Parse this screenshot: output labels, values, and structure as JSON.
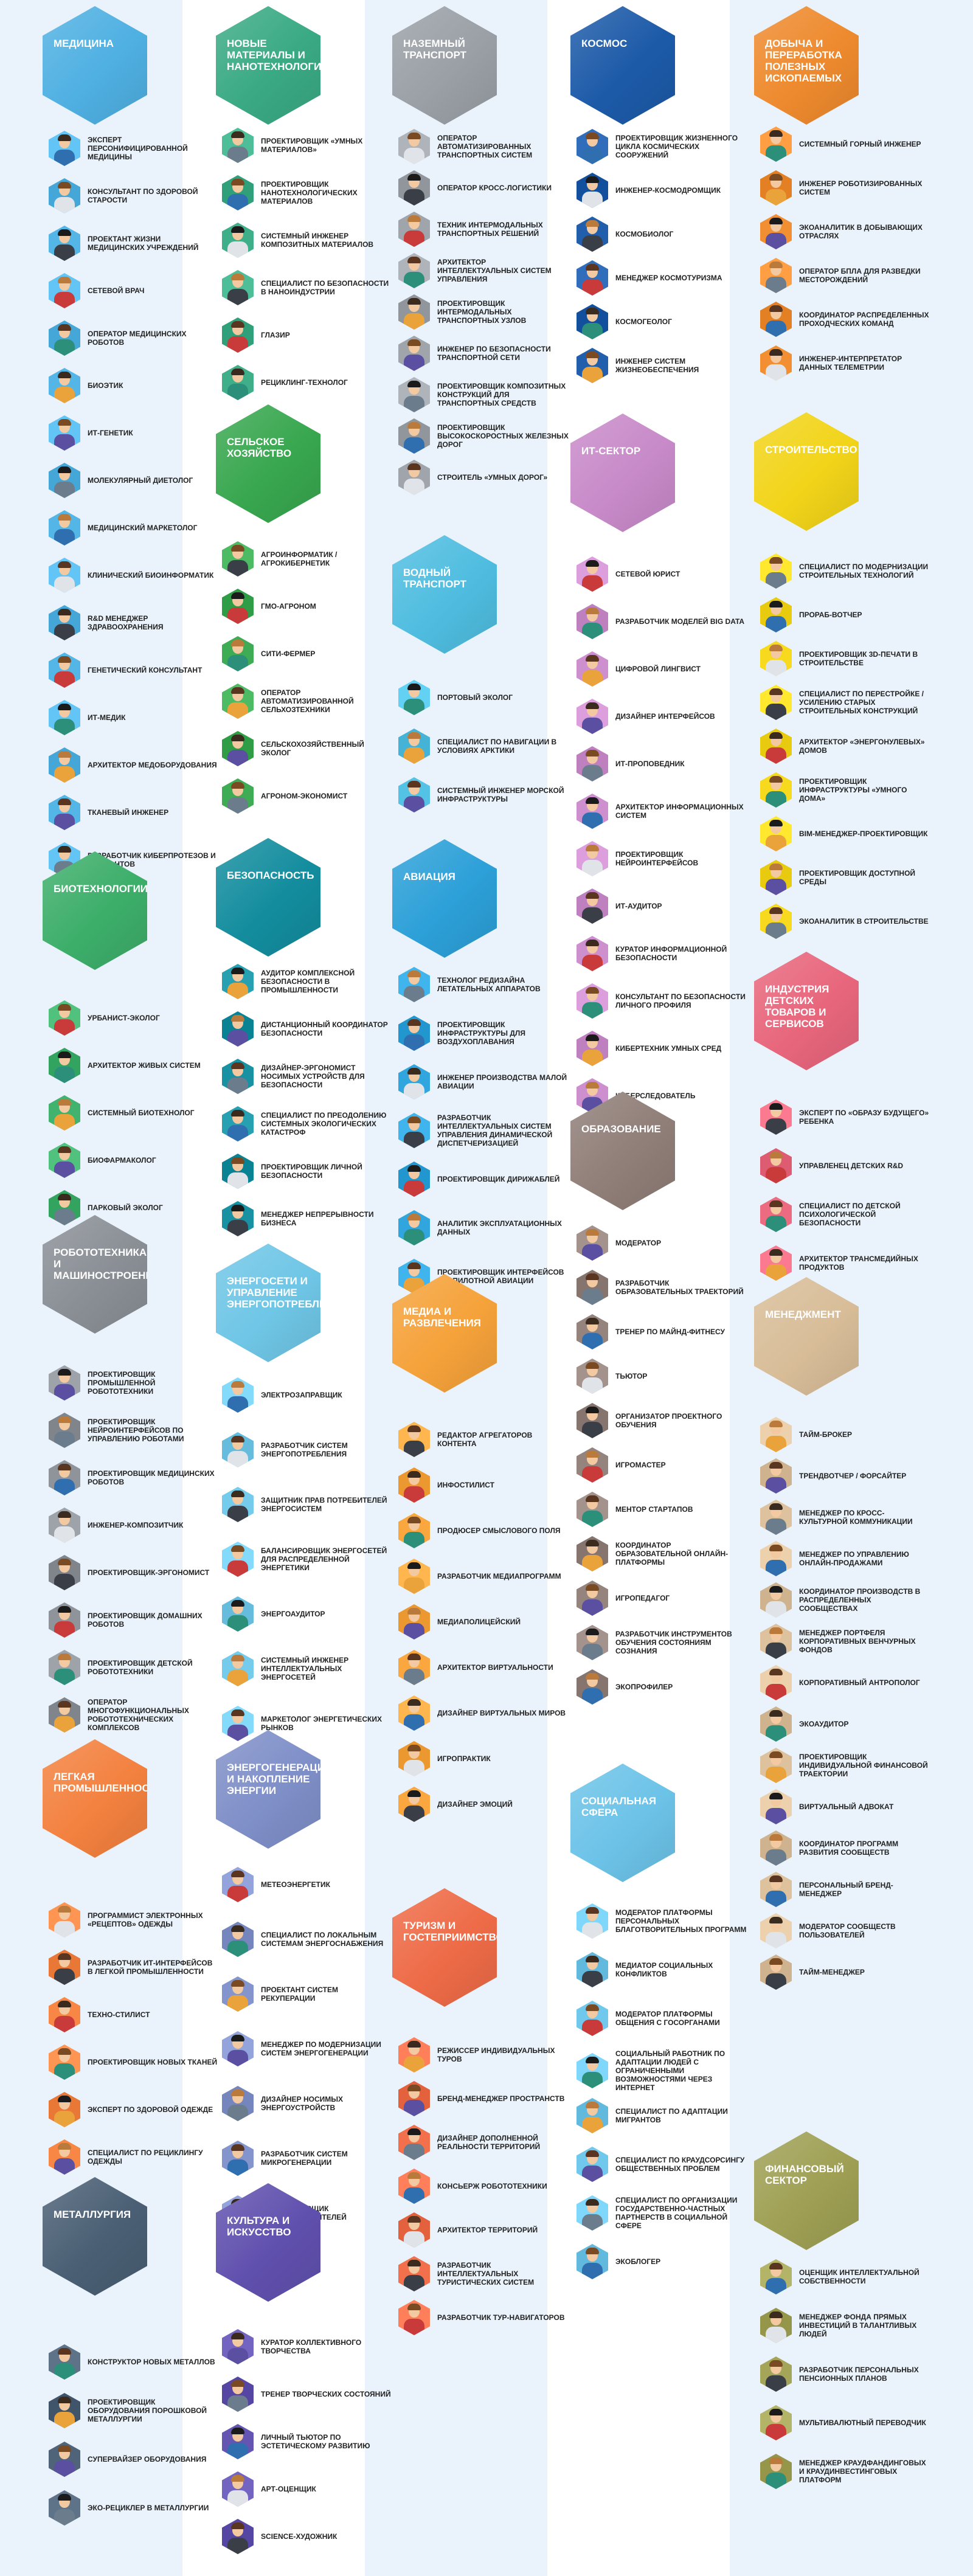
{
  "colors": {
    "stripe_light": "#eaf3fb",
    "stripe_white": "#ffffff"
  },
  "categories": [
    {
      "title": "Медицина",
      "color": "#4fb0e2",
      "items": [
        "Эксперт персонифицированной медицины",
        "Консультант по здоровой старости",
        "Проектант жизни медицинских учреждений",
        "Сетевой врач",
        "Оператор медицинских роботов",
        "Биоэтик",
        "ИТ-генетик",
        "Молекулярный диетолог",
        "Медицинский маркетолог",
        "Клинический биоинформатик",
        "R&D менеджер здравоохранения",
        "Генетический консультант",
        "ИТ-медик",
        "Архитектор медоборудования",
        "Тканевый инженер",
        "Разработчик киберпротезов и имплантов"
      ]
    },
    {
      "title": "Биотехнологии",
      "color": "#3dae6a",
      "items": [
        "Урбанист-эколог",
        "Архитектор живых систем",
        "Системный биотехнолог",
        "Биофармаколог",
        "Парковый эколог"
      ]
    },
    {
      "title": "Робототехника и машиностроение",
      "color": "#8a8f96",
      "items": [
        "Проектировщик промышленной робототехники",
        "Проектировщик нейроинтерфейсов по управлению роботами",
        "Проектировщик медицинских роботов",
        "Инженер-композитчик",
        "Проектировщик-эргономист",
        "Проектировщик домашних роботов",
        "Проектировщик детской робототехники",
        "Оператор многофункциональных робототехнических комплексов"
      ]
    },
    {
      "title": "Легкая промышленность",
      "color": "#f3813f",
      "items": [
        "Программист электронных «рецептов» одежды",
        "Разработчик ИТ-интерфейсов в легкой промышленности",
        "Техно-стилист",
        "Проектировщик новых тканей",
        "Эксперт по здоровой одежде",
        "Специалист по рециклингу одежды"
      ]
    },
    {
      "title": "Металлургия",
      "color": "#4a5f74",
      "items": [
        "Конструктор новых металлов",
        "Проектировщик оборудования порошковой металлургии",
        "Супервайзер оборудования",
        "Эко-рециклер в металлургии"
      ]
    },
    {
      "title": "Новые материалы и нанотехнологии",
      "color": "#3aaa84",
      "items": [
        "Проектировщик «умных материалов»",
        "Проектировщик нанотехнологических материалов",
        "Системный инженер композитных материалов",
        "Специалист по безопасности в наноиндустрии",
        "Глазир",
        "Рециклинг-технолог"
      ]
    },
    {
      "title": "Сельское хозяйство",
      "color": "#38a74f",
      "items": [
        "Агроинформатик / агрокибернетик",
        "ГМО-агроном",
        "Сити-фермер",
        "Оператор автоматизированной сельхозтехники",
        "Сельскохозяйственный эколог",
        "Агроном-экономист"
      ]
    },
    {
      "title": "Безопасность",
      "color": "#138d9e",
      "items": [
        "Аудитор комплексной безопасности в промышленности",
        "Дистанционный координатор безопасности",
        "Дизайнер-эргономист носимых устройств для безопасности",
        "Специалист по преодолению системных экологических катастроф",
        "Проектировщик личной безопасности",
        "Менеджер непрерывности бизнеса"
      ]
    },
    {
      "title": "Энергосети и управление энергопотреблением",
      "color": "#6fc6e6",
      "items": [
        "Электрозаправщик",
        "Разработчик систем энергопотребления",
        "Защитник прав потребителей энергосистем",
        "Балансировщик энергосетей для распределенной энергетики",
        "Энергоаудитор",
        "Системный инженер интеллектуальных энергосетей",
        "Маркетолог энергетических рынков"
      ]
    },
    {
      "title": "Энергогенерация и накопление энергии",
      "color": "#7f8fc8",
      "items": [
        "Метеоэнергетик",
        "Специалист по локальным системам энергоснабжения",
        "Проектант систем рекуперации",
        "Менеджер по модернизации систем энергогенерации",
        "Дизайнер носимых энергоустройств",
        "Разработчик систем микрогенерации",
        "Проектировщик энергонакопителей"
      ]
    },
    {
      "title": "Культура и искусство",
      "color": "#6050ae",
      "items": [
        "Куратор коллективного творчества",
        "Тренер творческих состояний",
        "Личный тьютор по эстетическому развитию",
        "Арт-оценщик",
        "Science-художник"
      ]
    },
    {
      "title": "Наземный транспорт",
      "color": "#9aa0a6",
      "items": [
        "Оператор автоматизированных транспортных систем",
        "Оператор кросс-логистики",
        "Техник интермодальных транспортных решений",
        "Архитектор интеллектуальных систем управления",
        "Проектировщик интермодальных транспортных узлов",
        "Инженер по безопасности транспортной сети",
        "Проектировщик композитных конструкций для транспортных средств",
        "Проектировщик высокоскоростных железных дорог",
        "Строитель «умных дорог»"
      ]
    },
    {
      "title": "Водный транспорт",
      "color": "#4fbde0",
      "items": [
        "Портовый эколог",
        "Специалист по навигации в условиях Арктики",
        "Системный инженер морской инфраструктуры"
      ]
    },
    {
      "title": "Авиация",
      "color": "#2ca0d8",
      "items": [
        "Технолог редизайна летательных аппаратов",
        "Проектировщик инфраструктуры для воздухоплавания",
        "Инженер производства малой авиации",
        "Разработчик интеллектуальных систем управления динамической диспетчеризацией",
        "Проектировщик дирижаблей",
        "Аналитик эксплуатационных данных",
        "Проектировщик интерфейсов беспилотной авиации"
      ]
    },
    {
      "title": "Медиа и развлечения",
      "color": "#f5a23a",
      "items": [
        "Редактор агрегаторов контента",
        "Инфостилист",
        "Продюсер смыслового поля",
        "Разработчик медиапрограмм",
        "Медиаполицейский",
        "Архитектор виртуальности",
        "Дизайнер виртуальных миров",
        "Игропрактик",
        "Дизайнер эмоций"
      ]
    },
    {
      "title": "Туризм и гостеприимство",
      "color": "#ee6b47",
      "items": [
        "Режиссер индивидуальных туров",
        "Бренд-менеджер пространств",
        "Дизайнер дополненной реальности территорий",
        "Консьерж робототехники",
        "Архитектор территорий",
        "Разработчик интеллектуальных туристических систем",
        "Разработчик тур-навигаторов"
      ]
    },
    {
      "title": "Космос",
      "color": "#1c5aa8",
      "items": [
        "Проектировщик жизненного цикла космических сооружений",
        "Инженер-космодромщик",
        "Космобиолог",
        "Менеджер космотуризма",
        "Космогеолог",
        "Инженер систем жизнеобеспечения"
      ]
    },
    {
      "title": "ИТ-сектор",
      "color": "#c88ac9",
      "items": [
        "Сетевой юрист",
        "Разработчик моделей Big Data",
        "Цифровой лингвист",
        "Дизайнер интерфейсов",
        "ИТ-проповедник",
        "Архитектор информационных систем",
        "Проектировщик нейроинтерфейсов",
        "ИТ-аудитор",
        "Куратор информационной безопасности",
        "Консультант по безопасности личного профиля",
        "Кибертехник умных сред",
        "Киберследователь"
      ]
    },
    {
      "title": "Образование",
      "color": "#907e78",
      "items": [
        "Модератор",
        "Разработчик образовательных траекторий",
        "Тренер по майнд-фитнесу",
        "Тьютор",
        "Организатор проектного обучения",
        "Игромастер",
        "Ментор стартапов",
        "Координатор образовательной онлайн-платформы",
        "Игропедагог",
        "Разработчик инструментов обучения состояниям сознания",
        "Экопрофилер"
      ]
    },
    {
      "title": "Социальная сфера",
      "color": "#6cc3e8",
      "items": [
        "Модератор платформы персональных благотворительных программ",
        "Медиатор социальных конфликтов",
        "Модератор платформы общения с госорганами",
        "Социальный работник по адаптации людей с ограниченными возможностями через интернет",
        "Специалист по адаптации мигрантов",
        "Специалист по краудсорсингу общественных проблем",
        "Специалист по организации государственно-частных партнерств в социальной сфере",
        "Экоблогер"
      ]
    },
    {
      "title": "Добыча и переработка полезных ископаемых",
      "color": "#ee8a2e",
      "items": [
        "Системный горный инженер",
        "Инженер роботизированных систем",
        "Экоаналитик в добывающих отраслях",
        "Оператор БПЛА для разведки месторождений",
        "Координатор распределенных проходческих команд",
        "Инженер-интерпретатор данных телеметрии"
      ]
    },
    {
      "title": "Строительство",
      "color": "#f2d419",
      "items": [
        "Специалист по модернизации строительных технологий",
        "Прораб-вотчер",
        "Проектировщик 3D-печати в строительстве",
        "Специалист по перестройке / усилению старых строительных конструкций",
        "Архитектор «энергонулевых» домов",
        "Проектировщик инфраструктуры «умного дома»",
        "BIM-менеджер-проектировщик",
        "Проектировщик доступной среды",
        "Экоаналитик в строительстве"
      ]
    },
    {
      "title": "Индустрия детских товаров и сервисов",
      "color": "#e8667c",
      "items": [
        "Эксперт по «образу будущего» ребенка",
        "Управленец детских R&D",
        "Специалист по детской психологической безопасности",
        "Архитектор трансмедийных продуктов"
      ]
    },
    {
      "title": "Менеджмент",
      "color": "#d8bd98",
      "items": [
        "Тайм-брокер",
        "Трендвотчер / форсайтер",
        "Менеджер по кросс-культурной коммуникации",
        "Менеджер по управлению онлайн-продажами",
        "Координатор производств в распределенных сообществах",
        "Менеджер портфеля корпоративных венчурных фондов",
        "Корпоративный антрополог",
        "Экоаудитор",
        "Проектировщик индивидуальной финансовой траектории",
        "Виртуальный адвокат",
        "Координатор программ развития сообществ",
        "Персональный бренд-менеджер",
        "Модератор сообществ пользователей",
        "Тайм-менеджер"
      ]
    },
    {
      "title": "Финансовый сектор",
      "color": "#9fa054",
      "items": [
        "Оценщик интеллектуальной собственности",
        "Менеджер фонда прямых инвестиций в талантливых людей",
        "Разработчик персональных пенсионных планов",
        "Мультивалютный переводчик",
        "Менеджер краудфандинговых и краудинвестинговых платформ"
      ]
    }
  ]
}
